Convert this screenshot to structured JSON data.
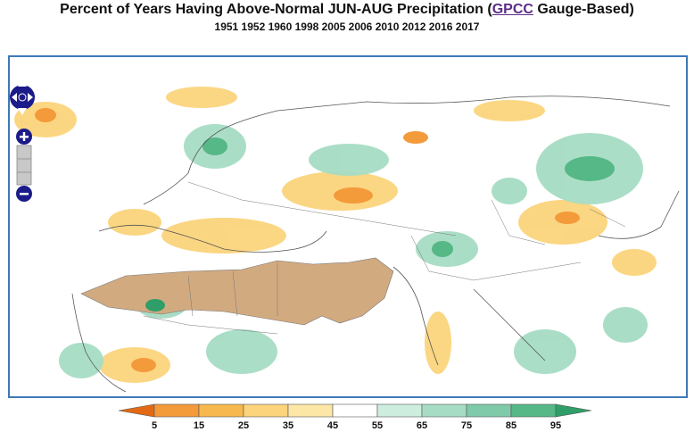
{
  "title": {
    "prefix": "Percent of Years Having Above-Normal JUN-AUG Precipitation (",
    "link": "GPCC",
    "suffix": " Gauge-Based)"
  },
  "years": "1951 1952 1960 1998 2005 2006 2010 2012 2016 2017",
  "controls": {
    "zoom_in_symbol": "+",
    "zoom_out_symbol": "−",
    "pan_icon": "compass-arrows-icon"
  },
  "legend": {
    "labels": [
      "5",
      "15",
      "25",
      "35",
      "45",
      "55",
      "65",
      "75",
      "85",
      "95"
    ],
    "colors": [
      "#e36a14",
      "#f39a3a",
      "#f7b84e",
      "#fbd47c",
      "#fde7a6",
      "#ffffff",
      "#cdeedf",
      "#a6dcc4",
      "#7ecaa9",
      "#56b886",
      "#2f9e68"
    ],
    "dry_mask_color": "#d2aa80"
  }
}
